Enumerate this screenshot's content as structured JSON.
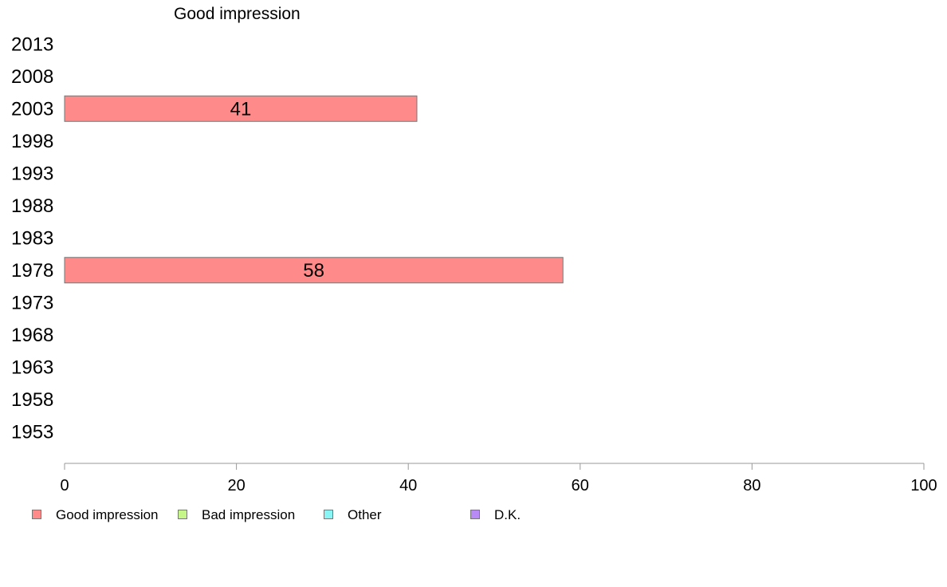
{
  "chart_data": {
    "type": "bar",
    "orientation": "horizontal",
    "title": "Good impression",
    "categories": [
      "2013",
      "2008",
      "2003",
      "1998",
      "1993",
      "1988",
      "1983",
      "1978",
      "1973",
      "1968",
      "1963",
      "1958",
      "1953"
    ],
    "series": [
      {
        "name": "Good impression",
        "color": "#ff8a8a",
        "values": [
          null,
          null,
          41,
          null,
          null,
          null,
          null,
          58,
          null,
          null,
          null,
          null,
          null
        ],
        "data_labels": [
          "",
          "",
          "41",
          "",
          "",
          "",
          "",
          "58",
          "",
          "",
          "",
          "",
          ""
        ]
      }
    ],
    "xlim": [
      0,
      100
    ],
    "x_ticks": [
      "0",
      "20",
      "40",
      "60",
      "80",
      "100"
    ],
    "grid": false,
    "legend_position": "bottom",
    "legend": [
      {
        "label": "Good impression",
        "color": "#ff8a8a"
      },
      {
        "label": "Bad impression",
        "color": "#c6f58a"
      },
      {
        "label": "Other",
        "color": "#8af5f5"
      },
      {
        "label": "D.K.",
        "color": "#b78af5"
      }
    ]
  }
}
